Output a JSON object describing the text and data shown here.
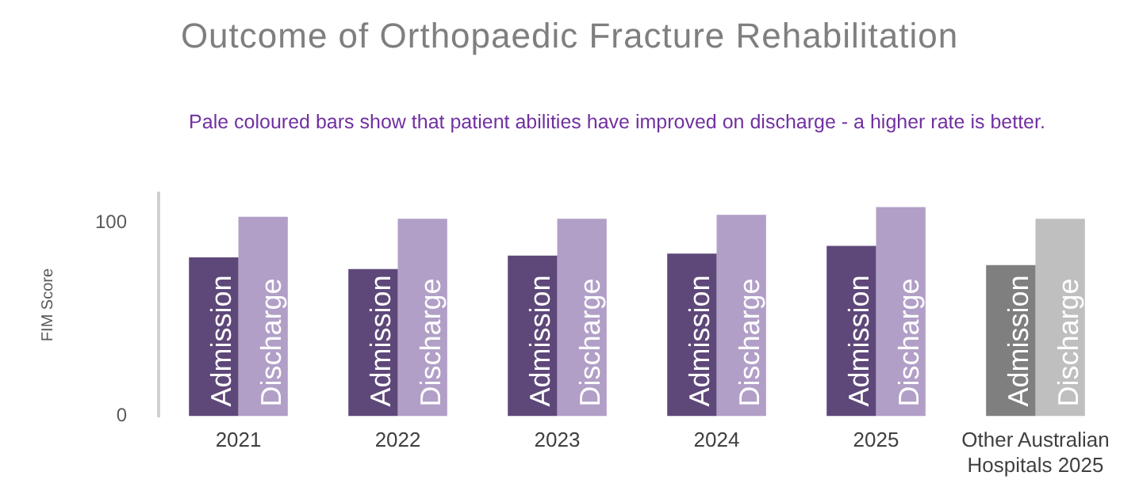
{
  "chart_data": {
    "type": "bar",
    "title": "Outcome of Orthopaedic Fracture Rehabilitation",
    "annotations": [
      "Pale coloured bars show that patient abilities have improved on discharge - a higher rate is better."
    ],
    "ylabel": "FIM Score",
    "categories": [
      "2021",
      "2022",
      "2023",
      "2024",
      "2025",
      "Other Australian Hospitals 2025"
    ],
    "series": [
      {
        "name": "Admission",
        "colors": [
          "#5e4779",
          "#5e4779",
          "#5e4779",
          "#5e4779",
          "#5e4779",
          "#7f7f7f"
        ],
        "values": [
          82,
          76,
          83,
          84,
          88,
          78
        ]
      },
      {
        "name": "Discharge",
        "colors": [
          "#b19fc7",
          "#b19fc7",
          "#b19fc7",
          "#b19fc7",
          "#b19fc7",
          "#bfbfbf"
        ],
        "values": [
          103,
          102,
          102,
          104,
          108,
          102
        ]
      }
    ],
    "ylim": [
      0,
      115
    ],
    "yticks": [
      0,
      100
    ],
    "grid": false,
    "legend": false
  }
}
